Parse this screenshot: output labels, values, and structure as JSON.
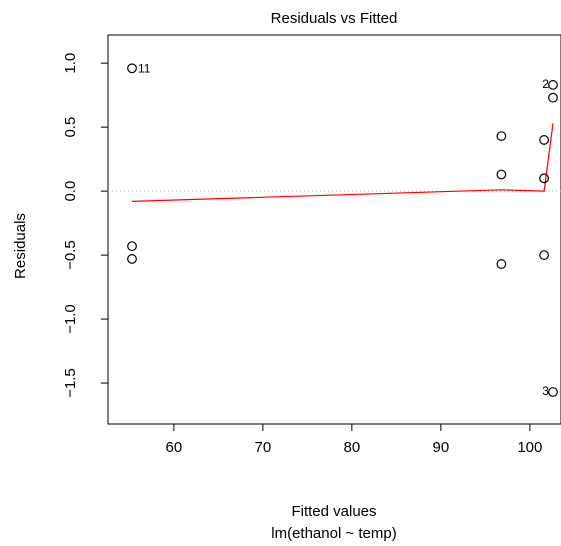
{
  "chart_data": {
    "type": "scatter",
    "title": "Residuals vs Fitted",
    "xlabel": "Fitted values",
    "sublabel": "lm(ethanol ~ temp)",
    "ylabel": "Residuals",
    "xlim": [
      52.6,
      103.5
    ],
    "ylim": [
      -1.82,
      1.22
    ],
    "xticks": [
      60,
      70,
      80,
      90,
      100
    ],
    "yticks": [
      -1.5,
      -1.0,
      -0.5,
      0.0,
      0.5,
      1.0
    ],
    "xtick_labels": [
      "60",
      "70",
      "80",
      "90",
      "100"
    ],
    "ytick_labels": [
      "−1.5",
      "−1.0",
      "−0.5",
      "0.0",
      "0.5",
      "1.0"
    ],
    "points": [
      {
        "x": 55.3,
        "y": 0.96,
        "label": "11"
      },
      {
        "x": 55.3,
        "y": -0.43
      },
      {
        "x": 55.3,
        "y": -0.53
      },
      {
        "x": 96.8,
        "y": 0.43
      },
      {
        "x": 96.8,
        "y": 0.13
      },
      {
        "x": 96.8,
        "y": -0.57
      },
      {
        "x": 101.6,
        "y": 0.4
      },
      {
        "x": 101.6,
        "y": 0.1
      },
      {
        "x": 101.6,
        "y": -0.5
      },
      {
        "x": 102.6,
        "y": 0.83,
        "label": "2"
      },
      {
        "x": 102.6,
        "y": 0.73
      },
      {
        "x": 102.6,
        "y": -1.57,
        "label": "3"
      }
    ],
    "smooth_line": {
      "x": [
        55.3,
        96.8,
        101.6,
        102.6
      ],
      "y": [
        -0.08,
        0.01,
        0.0,
        0.53
      ]
    },
    "reference_line": 0,
    "colors": {
      "points": "#000000",
      "smooth": "#ff0000",
      "reference": "#bebebe"
    }
  }
}
